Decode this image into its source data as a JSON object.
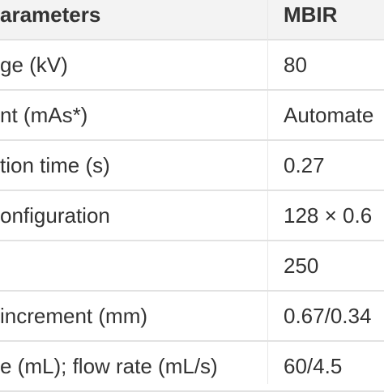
{
  "table": {
    "header": [
      "arameters",
      "MBIR"
    ],
    "rows": [
      {
        "label": "ge (kV)",
        "value": "80"
      },
      {
        "label": "nt (mAs*)",
        "value": "Automate"
      },
      {
        "label": "tion time (s)",
        "value": "0.27"
      },
      {
        "label": "onfiguration",
        "value": "128 × 0.6"
      },
      {
        "value": "250"
      },
      {
        "label": "increment (mm)",
        "value": "0.67/0.34"
      },
      {
        "label": "e (mL); flow rate (mL/s)",
        "value": "60/4.5"
      }
    ]
  }
}
